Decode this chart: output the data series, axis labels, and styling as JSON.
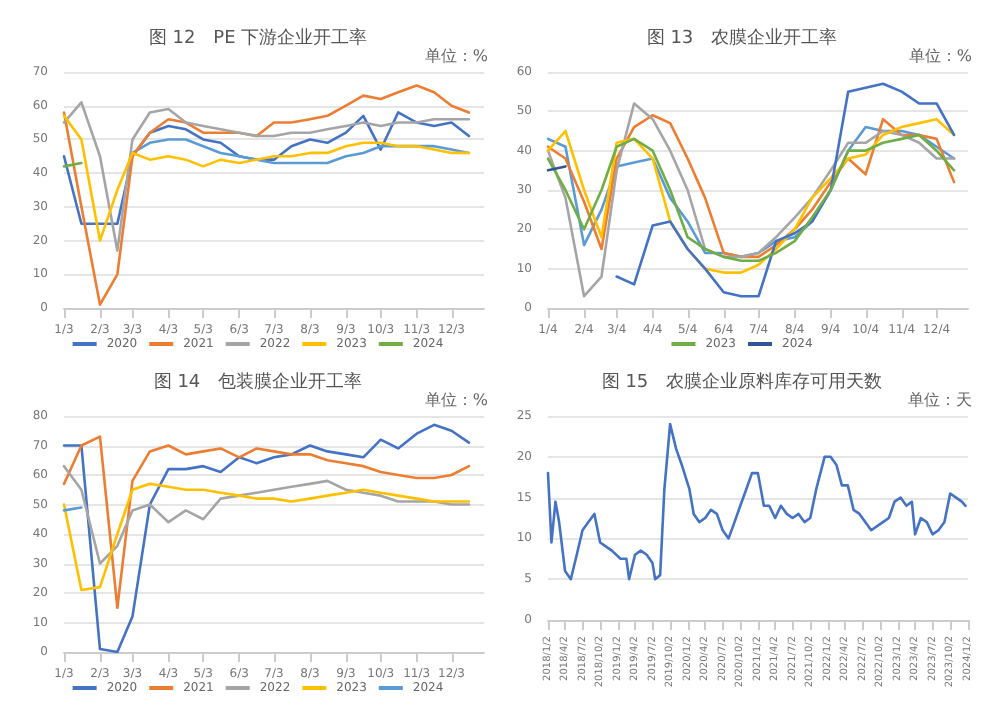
{
  "chart_data": [
    {
      "type": "line",
      "title": "图 12　PE 下游企业开工率",
      "annotations": [
        "单位：%"
      ],
      "marker": "none",
      "grid": "y",
      "legend": "bottom",
      "x": [
        "--01-03",
        "--01-18",
        "--02-03",
        "--02-18",
        "--03-03",
        "--03-18",
        "--04-03",
        "--04-18",
        "--05-03",
        "--05-18",
        "--06-03",
        "--06-18",
        "--07-03",
        "--07-18",
        "--08-03",
        "--08-18",
        "--09-03",
        "--09-18",
        "--10-03",
        "--10-18",
        "--11-03",
        "--11-18",
        "--12-03",
        "--12-18"
      ],
      "xlim": [
        "--01-03",
        "--12-31"
      ],
      "xticks": [
        {
          "value": "--01-03",
          "label": "1/3"
        },
        {
          "value": "--02-03",
          "label": "2/3"
        },
        {
          "value": "--03-03",
          "label": "3/3"
        },
        {
          "value": "--04-03",
          "label": "4/3"
        },
        {
          "value": "--05-03",
          "label": "5/3"
        },
        {
          "value": "--06-03",
          "label": "6/3"
        },
        {
          "value": "--07-03",
          "label": "7/3"
        },
        {
          "value": "--08-03",
          "label": "8/3"
        },
        {
          "value": "--09-03",
          "label": "9/3"
        },
        {
          "value": "--10-03",
          "label": "10/3"
        },
        {
          "value": "--11-03",
          "label": "11/3"
        },
        {
          "value": "--12-03",
          "label": "12/3"
        }
      ],
      "ylim": [
        0,
        70
      ],
      "yticks": [
        0,
        10,
        20,
        30,
        40,
        50,
        60,
        70
      ],
      "series": [
        {
          "name": "2020",
          "color": "#4472c4",
          "values": [
            45,
            25,
            25,
            25,
            45,
            52,
            54,
            53,
            50,
            49,
            45,
            44,
            44,
            48,
            50,
            49,
            52,
            57,
            47,
            58,
            55,
            54,
            55,
            51
          ]
        },
        {
          "color": "#5b9bd5",
          "values": [
            null,
            null,
            null,
            null,
            46,
            49,
            50,
            50,
            48,
            46,
            45,
            44,
            43,
            43,
            43,
            43,
            45,
            46,
            48,
            48,
            48,
            48,
            47,
            46
          ]
        },
        {
          "name": "2021",
          "color": "#ed7d31",
          "values": [
            58,
            30,
            1,
            10,
            45,
            52,
            56,
            55,
            52,
            52,
            52,
            51,
            55,
            55,
            56,
            57,
            60,
            63,
            62,
            64,
            66,
            64,
            60,
            58
          ]
        },
        {
          "name": "2022",
          "color": "#a5a5a5",
          "values": [
            55,
            61,
            45,
            17,
            50,
            58,
            59,
            55,
            54,
            53,
            52,
            51,
            51,
            52,
            52,
            53,
            54,
            55,
            54,
            55,
            55,
            56,
            56,
            56
          ]
        },
        {
          "name": "2023",
          "color": "#ffc000",
          "values": [
            57,
            50,
            20,
            35,
            46,
            44,
            45,
            44,
            42,
            44,
            43,
            44,
            45,
            45,
            46,
            46,
            48,
            49,
            49,
            48,
            48,
            47,
            46,
            46
          ]
        },
        {
          "name": "2024",
          "color": "#70ad47",
          "values": [
            42,
            43,
            null,
            null,
            null,
            null,
            null,
            null,
            null,
            null,
            null,
            null,
            null,
            null,
            null,
            null,
            null,
            null,
            null,
            null,
            null,
            null,
            null,
            null
          ]
        }
      ]
    },
    {
      "type": "line",
      "title": "图 13　农膜企业开工率",
      "annotations": [
        "单位：%"
      ],
      "marker": "none",
      "grid": "y",
      "legend": "bottom",
      "x": [
        "--01-04",
        "--01-19",
        "--02-04",
        "--02-19",
        "--03-04",
        "--03-19",
        "--04-04",
        "--04-19",
        "--05-04",
        "--05-19",
        "--06-04",
        "--06-19",
        "--07-04",
        "--07-19",
        "--08-04",
        "--08-19",
        "--09-04",
        "--09-19",
        "--10-04",
        "--10-19",
        "--11-04",
        "--11-19",
        "--12-04",
        "--12-19"
      ],
      "xlim": [
        "--01-04",
        "--12-31"
      ],
      "xticks": [
        {
          "value": "--01-04",
          "label": "1/4"
        },
        {
          "value": "--02-04",
          "label": "2/4"
        },
        {
          "value": "--03-04",
          "label": "3/4"
        },
        {
          "value": "--04-04",
          "label": "4/4"
        },
        {
          "value": "--05-04",
          "label": "5/4"
        },
        {
          "value": "--06-04",
          "label": "6/4"
        },
        {
          "value": "--07-04",
          "label": "7/4"
        },
        {
          "value": "--08-04",
          "label": "8/4"
        },
        {
          "value": "--09-04",
          "label": "9/4"
        },
        {
          "value": "--10-04",
          "label": "10/4"
        },
        {
          "value": "--11-04",
          "label": "11/4"
        },
        {
          "value": "--12-04",
          "label": "12/4"
        }
      ],
      "ylim": [
        0,
        60
      ],
      "yticks": [
        0,
        10,
        20,
        30,
        40,
        50,
        60
      ],
      "series": [
        {
          "color": "#5b9bd5",
          "values": [
            43,
            41,
            16,
            25,
            36,
            37,
            38,
            28,
            22,
            14,
            14,
            13,
            14,
            17,
            18,
            22,
            30,
            40,
            46,
            45,
            45,
            44,
            41,
            38
          ]
        },
        {
          "color": "#ed7d31",
          "values": [
            41,
            38,
            27,
            15,
            38,
            46,
            49,
            47,
            38,
            28,
            14,
            13,
            13,
            16,
            20,
            25,
            32,
            38,
            34,
            48,
            44,
            44,
            43,
            32
          ]
        },
        {
          "color": "#a5a5a5",
          "values": [
            40,
            28,
            3,
            8,
            35,
            52,
            48,
            40,
            30,
            15,
            13,
            13,
            14,
            18,
            23,
            28,
            35,
            42,
            42,
            45,
            44,
            42,
            38,
            38
          ]
        },
        {
          "color": "#ffc000",
          "values": [
            40,
            45,
            30,
            18,
            42,
            43,
            38,
            22,
            15,
            10,
            9,
            9,
            11,
            15,
            20,
            28,
            33,
            38,
            39,
            44,
            46,
            47,
            48,
            44
          ]
        },
        {
          "color": "#4472c4",
          "values": [
            null,
            null,
            null,
            null,
            8,
            6,
            21,
            22,
            15,
            10,
            4,
            3,
            3,
            17,
            19,
            22,
            30,
            55,
            56,
            57,
            55,
            52,
            52,
            44
          ]
        },
        {
          "name": "2023",
          "color": "#70ad47",
          "values": [
            38,
            30,
            20,
            30,
            41,
            43,
            40,
            30,
            18,
            15,
            13,
            12,
            12,
            14,
            17,
            23,
            30,
            40,
            40,
            42,
            43,
            44,
            40,
            35
          ]
        },
        {
          "name": "2024",
          "color": "#2f5597",
          "values": [
            35,
            36,
            null,
            null,
            null,
            null,
            null,
            null,
            null,
            null,
            null,
            null,
            null,
            null,
            null,
            null,
            null,
            null,
            null,
            null,
            null,
            null,
            null,
            null
          ]
        }
      ]
    },
    {
      "type": "line",
      "title": "图 14　包装膜企业开工率",
      "annotations": [
        "单位：%"
      ],
      "marker": "none",
      "grid": "y",
      "legend": "bottom",
      "x": [
        "--01-03",
        "--01-18",
        "--02-03",
        "--02-18",
        "--03-03",
        "--03-18",
        "--04-03",
        "--04-18",
        "--05-03",
        "--05-18",
        "--06-03",
        "--06-18",
        "--07-03",
        "--07-18",
        "--08-03",
        "--08-18",
        "--09-03",
        "--09-18",
        "--10-03",
        "--10-18",
        "--11-03",
        "--11-18",
        "--12-03",
        "--12-18"
      ],
      "xlim": [
        "--01-03",
        "--12-31"
      ],
      "xticks": [
        {
          "value": "--01-03",
          "label": "1/3"
        },
        {
          "value": "--02-03",
          "label": "2/3"
        },
        {
          "value": "--03-03",
          "label": "3/3"
        },
        {
          "value": "--04-03",
          "label": "4/3"
        },
        {
          "value": "--05-03",
          "label": "5/3"
        },
        {
          "value": "--06-03",
          "label": "6/3"
        },
        {
          "value": "--07-03",
          "label": "7/3"
        },
        {
          "value": "--08-03",
          "label": "8/3"
        },
        {
          "value": "--09-03",
          "label": "9/3"
        },
        {
          "value": "--10-03",
          "label": "10/3"
        },
        {
          "value": "--11-03",
          "label": "11/3"
        },
        {
          "value": "--12-03",
          "label": "12/3"
        }
      ],
      "ylim": [
        0,
        80
      ],
      "yticks": [
        0,
        10,
        20,
        30,
        40,
        50,
        60,
        70,
        80
      ],
      "series": [
        {
          "name": "2020",
          "color": "#4472c4",
          "values": [
            70,
            70,
            1,
            0,
            12,
            50,
            62,
            62,
            63,
            61,
            66,
            64,
            66,
            67,
            70,
            68,
            67,
            66,
            72,
            69,
            74,
            77,
            75,
            71
          ]
        },
        {
          "name": "2021",
          "color": "#ed7d31",
          "values": [
            57,
            70,
            73,
            15,
            58,
            68,
            70,
            67,
            68,
            69,
            66,
            69,
            68,
            67,
            67,
            65,
            64,
            63,
            61,
            60,
            59,
            59,
            60,
            63
          ]
        },
        {
          "name": "2022",
          "color": "#a5a5a5",
          "values": [
            63,
            55,
            30,
            36,
            48,
            50,
            44,
            48,
            45,
            52,
            53,
            54,
            55,
            56,
            57,
            58,
            55,
            54,
            53,
            51,
            51,
            51,
            50,
            50
          ]
        },
        {
          "name": "2023",
          "color": "#ffc000",
          "values": [
            50,
            21,
            22,
            40,
            55,
            57,
            56,
            55,
            55,
            54,
            53,
            52,
            52,
            51,
            52,
            53,
            54,
            55,
            54,
            53,
            52,
            51,
            51,
            51
          ]
        },
        {
          "name": "2024",
          "color": "#5b9bd5",
          "values": [
            48,
            49,
            null,
            null,
            null,
            null,
            null,
            null,
            null,
            null,
            null,
            null,
            null,
            null,
            null,
            null,
            null,
            null,
            null,
            null,
            null,
            null,
            null,
            null
          ]
        }
      ]
    },
    {
      "type": "line",
      "title": "图 15　农膜企业原料库存可用天数",
      "annotations": [
        "单位：天"
      ],
      "marker": "none",
      "grid": "y",
      "xlim": [
        "2018-01-02",
        "2024-01-02"
      ],
      "xticks": [
        {
          "value": "2018-01-02",
          "label": "2018/1/2"
        },
        {
          "value": "2018-04-02",
          "label": "2018/4/2"
        },
        {
          "value": "2018-07-02",
          "label": "2018/7/2"
        },
        {
          "value": "2018-10-02",
          "label": "2018/10/2"
        },
        {
          "value": "2019-01-02",
          "label": "2019/1/2"
        },
        {
          "value": "2019-04-02",
          "label": "2019/4/2"
        },
        {
          "value": "2019-07-02",
          "label": "2019/7/2"
        },
        {
          "value": "2019-10-02",
          "label": "2019/10/2"
        },
        {
          "value": "2020-01-02",
          "label": "2020/1/2"
        },
        {
          "value": "2020-04-02",
          "label": "2020/4/2"
        },
        {
          "value": "2020-07-02",
          "label": "2020/7/2"
        },
        {
          "value": "2020-10-02",
          "label": "2020/10/2"
        },
        {
          "value": "2021-01-02",
          "label": "2021/1/2"
        },
        {
          "value": "2021-04-02",
          "label": "2021/4/2"
        },
        {
          "value": "2021-07-02",
          "label": "2021/7/2"
        },
        {
          "value": "2021-10-02",
          "label": "2021/10/2"
        },
        {
          "value": "2022-01-02",
          "label": "2022/1/2"
        },
        {
          "value": "2022-04-02",
          "label": "2022/4/2"
        },
        {
          "value": "2022-07-02",
          "label": "2022/7/2"
        },
        {
          "value": "2022-10-02",
          "label": "2022/10/2"
        },
        {
          "value": "2023-01-02",
          "label": "2023/1/2"
        },
        {
          "value": "2023-04-02",
          "label": "2023/4/2"
        },
        {
          "value": "2023-07-02",
          "label": "2023/7/2"
        },
        {
          "value": "2023-10-02",
          "label": "2023/10/2"
        },
        {
          "value": "2024-01-02",
          "label": "2024/1/2"
        }
      ],
      "ylim": [
        0,
        25
      ],
      "yticks": [
        0,
        5,
        10,
        15,
        20,
        25
      ],
      "series": [
        {
          "color": "#4472c4",
          "x": [
            "2018-01-02",
            "2018-01-20",
            "2018-02-10",
            "2018-03-01",
            "2018-04-01",
            "2018-05-01",
            "2018-06-01",
            "2018-07-01",
            "2018-08-01",
            "2018-09-01",
            "2018-10-01",
            "2018-11-01",
            "2018-12-01",
            "2019-01-15",
            "2019-02-15",
            "2019-03-01",
            "2019-04-01",
            "2019-05-01",
            "2019-06-01",
            "2019-07-01",
            "2019-07-15",
            "2019-08-10",
            "2019-09-01",
            "2019-10-01",
            "2019-11-01",
            "2019-12-01",
            "2020-01-10",
            "2020-02-01",
            "2020-03-01",
            "2020-04-01",
            "2020-05-01",
            "2020-06-01",
            "2020-07-01",
            "2020-08-01",
            "2020-09-01",
            "2020-10-01",
            "2020-11-01",
            "2020-12-01",
            "2021-01-01",
            "2021-02-01",
            "2021-03-01",
            "2021-04-01",
            "2021-05-01",
            "2021-06-01",
            "2021-07-01",
            "2021-08-01",
            "2021-09-01",
            "2021-10-01",
            "2021-11-01",
            "2021-12-15",
            "2022-01-15",
            "2022-02-15",
            "2022-03-15",
            "2022-04-15",
            "2022-05-15",
            "2022-06-15",
            "2022-07-15",
            "2022-08-15",
            "2022-09-15",
            "2022-10-15",
            "2022-11-15",
            "2022-12-15",
            "2023-01-15",
            "2023-02-15",
            "2023-03-15",
            "2023-04-01",
            "2023-05-01",
            "2023-06-01",
            "2023-07-01",
            "2023-08-01",
            "2023-09-01",
            "2023-10-01",
            "2023-11-01",
            "2023-12-01",
            "2023-12-20"
          ],
          "values": [
            18,
            9.5,
            14.5,
            12,
            6,
            5,
            8,
            11,
            12,
            13,
            9.5,
            9,
            8.5,
            7.5,
            7.5,
            5,
            8,
            8.5,
            8,
            7,
            5,
            5.5,
            16,
            24,
            21,
            19,
            16,
            13,
            12,
            12.5,
            13.5,
            13,
            11,
            10,
            12,
            14,
            16,
            18,
            18,
            14,
            14,
            12.5,
            14,
            13,
            12.5,
            13,
            12,
            12.5,
            16,
            20,
            20,
            19,
            16.5,
            16.5,
            13.5,
            13,
            12,
            11,
            11.5,
            12,
            12.5,
            14.5,
            15,
            14,
            14.5,
            10.5,
            12.5,
            12,
            10.5,
            11,
            12,
            15.5,
            15,
            14.5,
            14
          ]
        }
      ]
    }
  ]
}
